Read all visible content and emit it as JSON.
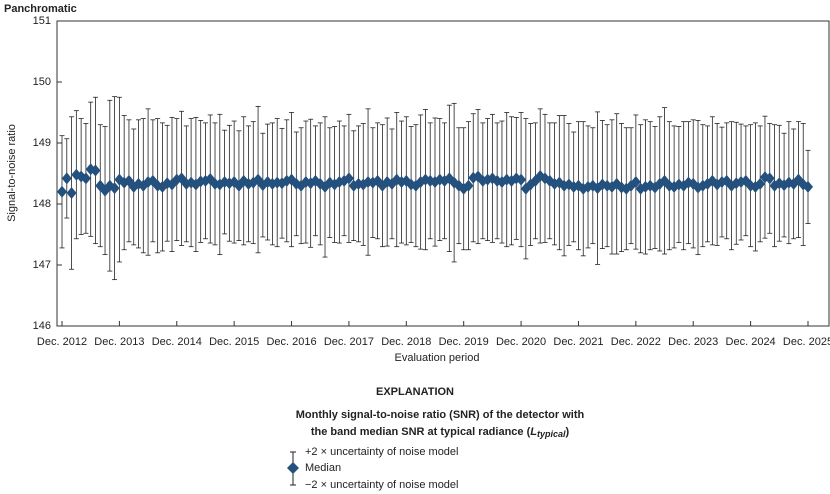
{
  "chart_data": {
    "type": "errorbar",
    "title": "Panchromatic",
    "xlabel": "Evaluation period",
    "ylabel": "Signal-to-noise ratio",
    "categories": [
      "Dec. 2012",
      null,
      null,
      null,
      null,
      null,
      null,
      null,
      null,
      null,
      null,
      null,
      "Dec. 2013",
      null,
      null,
      null,
      null,
      null,
      null,
      null,
      null,
      null,
      null,
      null,
      "Dec. 2014",
      null,
      null,
      null,
      null,
      null,
      null,
      null,
      null,
      null,
      null,
      null,
      "Dec. 2015",
      null,
      null,
      null,
      null,
      null,
      null,
      null,
      null,
      null,
      null,
      null,
      "Dec. 2016",
      null,
      null,
      null,
      null,
      null,
      null,
      null,
      null,
      null,
      null,
      null,
      "Dec. 2017",
      null,
      null,
      null,
      null,
      null,
      null,
      null,
      null,
      null,
      null,
      null,
      "Dec. 2018",
      null,
      null,
      null,
      null,
      null,
      null,
      null,
      null,
      null,
      null,
      null,
      "Dec. 2019",
      null,
      null,
      null,
      null,
      null,
      null,
      null,
      null,
      null,
      null,
      null,
      "Dec. 2020",
      null,
      null,
      null,
      null,
      null,
      null,
      null,
      null,
      null,
      null,
      null,
      "Dec. 2021",
      null,
      null,
      null,
      null,
      null,
      null,
      null,
      null,
      null,
      null,
      null,
      "Dec. 2022",
      null,
      null,
      null,
      null,
      null,
      null,
      null,
      null,
      null,
      null,
      null,
      "Dec. 2023",
      null,
      null,
      null,
      null,
      null,
      null,
      null,
      null,
      null,
      null,
      null,
      "Dec. 2024",
      null,
      null,
      null,
      null,
      null,
      null,
      null,
      null,
      null,
      null,
      null,
      "Dec. 2025"
    ],
    "series": [
      {
        "name": "Median",
        "color": "#24507e",
        "values": [
          148.2,
          148.42,
          148.18,
          148.48,
          148.45,
          148.42,
          148.57,
          148.55,
          148.3,
          148.22,
          148.3,
          148.26,
          148.4,
          148.35,
          148.38,
          148.28,
          148.33,
          148.3,
          148.36,
          148.38,
          148.3,
          148.28,
          148.34,
          148.32,
          148.4,
          148.42,
          148.33,
          148.35,
          148.32,
          148.37,
          148.38,
          148.41,
          148.33,
          148.32,
          148.36,
          148.34,
          148.36,
          148.3,
          148.38,
          148.33,
          148.35,
          148.4,
          148.31,
          148.36,
          148.33,
          148.35,
          148.34,
          148.38,
          148.4,
          148.33,
          148.3,
          148.36,
          148.34,
          148.38,
          148.33,
          148.28,
          148.35,
          148.32,
          148.36,
          148.38,
          148.42,
          148.3,
          148.33,
          148.32,
          148.36,
          148.35,
          148.38,
          148.3,
          148.36,
          148.33,
          148.4,
          148.36,
          148.38,
          148.32,
          148.3,
          148.36,
          148.4,
          148.38,
          148.36,
          148.4,
          148.38,
          148.42,
          148.35,
          148.3,
          148.25,
          148.3,
          148.43,
          148.45,
          148.38,
          148.4,
          148.42,
          148.38,
          148.36,
          148.4,
          148.38,
          148.42,
          148.4,
          148.25,
          148.32,
          148.38,
          148.46,
          148.42,
          148.38,
          148.33,
          148.35,
          148.3,
          148.32,
          148.28,
          148.3,
          148.25,
          148.28,
          148.3,
          148.26,
          148.32,
          148.3,
          148.28,
          148.33,
          148.27,
          148.25,
          148.3,
          148.36,
          148.25,
          148.28,
          148.3,
          148.27,
          148.33,
          148.38,
          148.3,
          148.28,
          148.32,
          148.3,
          148.35,
          148.33,
          148.27,
          148.3,
          148.33,
          148.38,
          148.32,
          148.36,
          148.38,
          148.3,
          148.34,
          148.36,
          148.38,
          148.3,
          148.28,
          148.33,
          148.44,
          148.42,
          148.3,
          148.34,
          148.31,
          148.35,
          148.33,
          148.4,
          148.32,
          148.28
        ],
        "errors": [
          0.92,
          0.65,
          1.25,
          1.05,
          0.95,
          0.9,
          1.1,
          1.2,
          1.0,
          1.05,
          1.4,
          1.5,
          1.35,
          1.1,
          1.0,
          0.95,
          1.05,
          1.1,
          1.2,
          1.0,
          1.1,
          1.05,
          0.95,
          1.1,
          1.0,
          1.1,
          0.95,
          1.05,
          1.1,
          1.0,
          0.95,
          1.05,
          1.0,
          1.15,
          0.85,
          0.95,
          1.0,
          0.9,
          1.05,
          0.95,
          1.0,
          1.2,
          0.85,
          0.95,
          1.0,
          1.05,
          0.9,
          1.0,
          1.1,
          0.85,
          0.95,
          1.0,
          1.05,
          0.9,
          1.0,
          1.15,
          0.9,
          0.95,
          1.0,
          0.9,
          1.05,
          0.9,
          0.95,
          1.0,
          1.2,
          0.9,
          0.95,
          1.0,
          1.05,
          0.9,
          1.1,
          1.0,
          1.05,
          0.95,
          1.0,
          1.1,
          1.15,
          0.95,
          1.05,
          1.0,
          0.95,
          1.2,
          1.3,
          0.95,
          1.0,
          1.05,
          1.05,
          1.1,
          0.95,
          1.0,
          1.05,
          0.95,
          1.0,
          1.1,
          1.05,
          1.0,
          1.1,
          1.15,
          1.0,
          0.95,
          1.1,
          1.05,
          0.95,
          1.0,
          1.1,
          1.15,
          1.0,
          0.9,
          1.05,
          1.1,
          1.0,
          0.95,
          1.25,
          1.05,
          1.0,
          1.1,
          1.15,
          1.05,
          1.0,
          0.95,
          1.1,
          1.05,
          1.1,
          1.05,
          1.0,
          1.1,
          1.2,
          1.05,
          1.0,
          0.95,
          1.05,
          1.0,
          1.05,
          1.1,
          1.0,
          0.95,
          1.05,
          1.0,
          0.9,
          0.95,
          1.05,
          1.0,
          0.95,
          0.9,
          1.0,
          1.05,
          0.95,
          1.0,
          0.9,
          1.0,
          0.95,
          0.85,
          1.0,
          0.9,
          0.95,
          1.0,
          0.6
        ]
      }
    ],
    "ylim": [
      146,
      151
    ],
    "yticks": [
      146,
      147,
      148,
      149,
      150,
      151
    ],
    "legend": {
      "position": "bottom",
      "title": "EXPLANATION",
      "caption_line1": "Monthly signal-to-noise ratio (SNR) of the detector with",
      "caption_line2": "the band median SNR at typical radiance (",
      "caption_symbol": "L",
      "caption_subscript": "typical",
      "caption_end": ")",
      "upper_label": "+2 × uncertainty of noise model",
      "lower_label": "−2 × uncertainty of noise model"
    }
  }
}
